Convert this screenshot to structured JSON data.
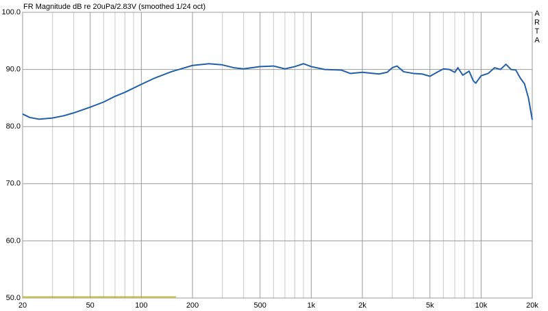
{
  "chart_data": {
    "type": "line",
    "title": "FR Magnitude dB re 20uPa/2.83V (smoothed 1/24 oct)",
    "watermark": "ARTA",
    "log_x": true,
    "grid": true,
    "xlim": [
      20,
      20000
    ],
    "ylim": [
      50,
      100
    ],
    "xticks": [
      20,
      50,
      100,
      200,
      500,
      {
        "value": 1000,
        "label": "1k"
      },
      {
        "value": 2000,
        "label": "2k"
      },
      {
        "value": 5000,
        "label": "5k"
      },
      {
        "value": 10000,
        "label": "10k"
      },
      {
        "value": 20000,
        "label": "20k"
      }
    ],
    "xgrid_minor": [
      30,
      40,
      60,
      70,
      80,
      90,
      300,
      400,
      600,
      700,
      800,
      900,
      3000,
      4000,
      6000,
      7000,
      8000,
      9000
    ],
    "yticks": [
      {
        "value": 50,
        "label": "50.0"
      },
      {
        "value": 60,
        "label": "60.0"
      },
      {
        "value": 70,
        "label": "70.0"
      },
      {
        "value": 80,
        "label": "80.0"
      },
      {
        "value": 90,
        "label": "90.0"
      },
      {
        "value": 100,
        "label": "100.0"
      }
    ],
    "series": [
      {
        "color": "#1f5fa8",
        "x": [
          20,
          22,
          25,
          30,
          35,
          40,
          50,
          60,
          70,
          80,
          100,
          120,
          150,
          200,
          250,
          300,
          350,
          400,
          500,
          600,
          700,
          800,
          900,
          1000,
          1200,
          1500,
          1700,
          2000,
          2500,
          2800,
          3000,
          3200,
          3500,
          4000,
          4500,
          5000,
          5500,
          6000,
          6500,
          7000,
          7300,
          7800,
          8500,
          9000,
          9300,
          10000,
          11000,
          12000,
          13000,
          14000,
          15000,
          16000,
          17000,
          18000,
          19000,
          20000
        ],
        "values": [
          82.2,
          81.6,
          81.3,
          81.5,
          81.9,
          82.4,
          83.4,
          84.3,
          85.3,
          86.0,
          87.4,
          88.5,
          89.6,
          90.7,
          91.0,
          90.8,
          90.3,
          90.1,
          90.5,
          90.6,
          90.1,
          90.5,
          91.0,
          90.5,
          90.0,
          89.9,
          89.3,
          89.5,
          89.2,
          89.5,
          90.3,
          90.6,
          89.6,
          89.3,
          89.2,
          88.8,
          89.5,
          90.1,
          90.0,
          89.5,
          90.3,
          89.0,
          89.7,
          88.0,
          87.6,
          88.9,
          89.3,
          90.3,
          90.0,
          90.9,
          90.0,
          89.9,
          88.5,
          87.5,
          85.0,
          81.2
        ]
      },
      {
        "color": "#c8b400",
        "x": [
          20,
          160
        ],
        "values": [
          50.2,
          50.2
        ]
      }
    ]
  }
}
